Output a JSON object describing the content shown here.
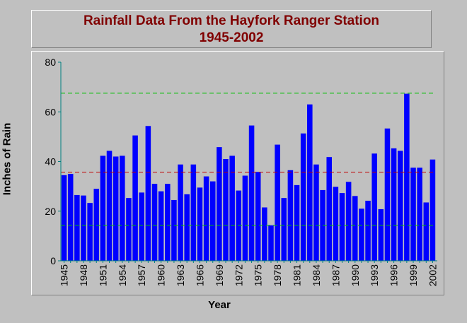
{
  "chart_data": {
    "type": "bar",
    "title": "Rainfall Data From the Hayfork Ranger Station",
    "subtitle": "1945-2002",
    "xlabel": "Year",
    "ylabel": "Inches of Rain",
    "ylim": [
      0,
      80
    ],
    "yticks": [
      "0",
      "20",
      "40",
      "60",
      "80"
    ],
    "grid": false,
    "bar_color": "#0000ff",
    "categories": [
      "1945",
      "1946",
      "1947",
      "1948",
      "1949",
      "1950",
      "1951",
      "1952",
      "1953",
      "1954",
      "1955",
      "1956",
      "1957",
      "1958",
      "1959",
      "1960",
      "1961",
      "1962",
      "1963",
      "1964",
      "1965",
      "1966",
      "1967",
      "1968",
      "1969",
      "1970",
      "1971",
      "1972",
      "1973",
      "1974",
      "1975",
      "1976",
      "1977",
      "1978",
      "1979",
      "1980",
      "1981",
      "1982",
      "1983",
      "1984",
      "1985",
      "1986",
      "1987",
      "1988",
      "1989",
      "1990",
      "1991",
      "1992",
      "1993",
      "1994",
      "1995",
      "1996",
      "1997",
      "1998",
      "1999",
      "2000",
      "2001",
      "2002"
    ],
    "tick_labels": [
      "1945",
      "1948",
      "1951",
      "1954",
      "1957",
      "1960",
      "1963",
      "1966",
      "1969",
      "1972",
      "1975",
      "1978",
      "1981",
      "1984",
      "1987",
      "1990",
      "1993",
      "1996",
      "1999",
      "2002"
    ],
    "values": [
      34.5,
      35,
      26.5,
      26.3,
      23.3,
      29,
      42.3,
      44.3,
      42,
      42.3,
      25.3,
      50.5,
      27.5,
      54.3,
      31,
      28,
      31,
      24.5,
      38.8,
      26.8,
      38.8,
      29.5,
      34,
      32,
      45.8,
      41,
      42.3,
      28.3,
      34.3,
      54.5,
      35.8,
      21.5,
      14.3,
      46.8,
      25.3,
      36.5,
      30.5,
      51.3,
      63,
      38.8,
      28.5,
      41.8,
      29.8,
      27.3,
      31.8,
      26.1,
      21,
      24.2,
      43.2,
      20.8,
      53.3,
      45.3,
      44.3,
      67.3,
      37.5,
      37.5,
      23.5,
      40.8
    ],
    "reference_lines": [
      {
        "value": 67.5,
        "color": "#00c000"
      },
      {
        "value": 35.7,
        "color": "#c00000"
      },
      {
        "value": 14.3,
        "color": "#00c000"
      }
    ]
  }
}
